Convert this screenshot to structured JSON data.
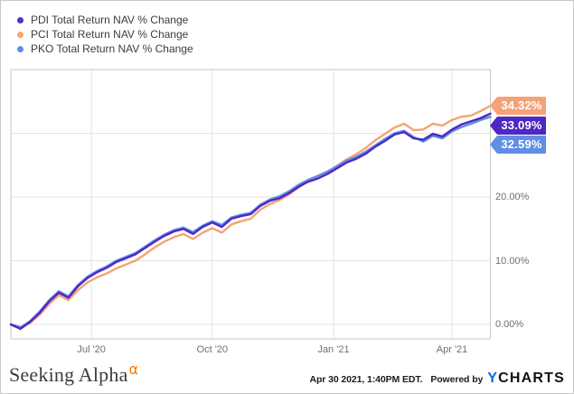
{
  "legend": {
    "items": [
      {
        "label": "PDI Total Return NAV % Change",
        "color": "#5530c8"
      },
      {
        "label": "PCI Total Return NAV % Change",
        "color": "#f8a571"
      },
      {
        "label": "PKO Total Return NAV % Change",
        "color": "#5f8ee2"
      }
    ]
  },
  "chart_data": {
    "type": "line",
    "title": "",
    "x_range_dates": [
      "Apr '20",
      "Apr 30 2021"
    ],
    "x_axis": {
      "ticks": [
        {
          "label": "Jul '20",
          "t": 0.168
        },
        {
          "label": "Oct '20",
          "t": 0.42
        },
        {
          "label": "Jan '21",
          "t": 0.673
        },
        {
          "label": "Apr '21",
          "t": 0.92
        }
      ]
    },
    "y_axis": {
      "min": -2.3,
      "max": 40,
      "gridline_values": [
        0,
        10,
        20,
        30
      ],
      "ticks": [
        {
          "label": "20.00%",
          "value": 20
        },
        {
          "label": "10.00%",
          "value": 10
        },
        {
          "label": "0.00%",
          "value": 0
        }
      ]
    },
    "x": [
      0,
      0.02,
      0.04,
      0.06,
      0.08,
      0.1,
      0.12,
      0.14,
      0.16,
      0.18,
      0.2,
      0.22,
      0.24,
      0.26,
      0.28,
      0.3,
      0.32,
      0.34,
      0.36,
      0.38,
      0.4,
      0.42,
      0.44,
      0.46,
      0.48,
      0.5,
      0.52,
      0.54,
      0.56,
      0.58,
      0.6,
      0.62,
      0.64,
      0.66,
      0.68,
      0.7,
      0.72,
      0.74,
      0.76,
      0.78,
      0.8,
      0.82,
      0.84,
      0.86,
      0.88,
      0.9,
      0.92,
      0.94,
      0.96,
      0.98,
      1.0
    ],
    "series": [
      {
        "name": "PCI Total Return NAV % Change",
        "color": "#f5a376",
        "end_label": "34.32%",
        "end_value": 34.32,
        "values": [
          0,
          -0.4,
          0.2,
          1.5,
          3.2,
          4.6,
          3.8,
          5.4,
          6.6,
          7.4,
          8.0,
          8.8,
          9.4,
          10.0,
          11.0,
          12.1,
          13.0,
          13.7,
          14.2,
          13.4,
          14.4,
          15.1,
          14.4,
          15.7,
          16.2,
          16.6,
          18.0,
          18.9,
          19.5,
          20.4,
          21.5,
          22.5,
          23.1,
          23.9,
          24.9,
          25.9,
          26.7,
          27.7,
          28.9,
          29.9,
          30.9,
          31.5,
          30.5,
          30.6,
          31.5,
          31.2,
          32.1,
          32.6,
          32.8,
          33.5,
          34.32
        ]
      },
      {
        "name": "PKO Total Return NAV % Change",
        "color": "#5f8ee2",
        "end_label": "32.59%",
        "end_value": 32.59,
        "values": [
          0,
          -0.5,
          0.5,
          2.0,
          3.8,
          5.2,
          4.4,
          6.2,
          7.5,
          8.4,
          9.1,
          10.0,
          10.6,
          11.2,
          12.2,
          13.2,
          14.1,
          14.8,
          15.2,
          14.5,
          15.5,
          16.2,
          15.6,
          16.8,
          17.2,
          17.5,
          18.8,
          19.6,
          20.1,
          20.9,
          21.9,
          22.7,
          23.3,
          24.0,
          24.8,
          25.7,
          26.3,
          27.1,
          28.1,
          29.1,
          30.0,
          30.4,
          29.4,
          28.7,
          29.6,
          29.2,
          30.3,
          31.0,
          31.5,
          32.1,
          32.59
        ]
      },
      {
        "name": "PDI Total Return NAV % Change",
        "color": "#4e28c4",
        "end_label": "33.09%",
        "end_value": 33.09,
        "values": [
          0,
          -0.7,
          0.4,
          1.8,
          3.6,
          5.0,
          4.2,
          6.0,
          7.3,
          8.2,
          8.9,
          9.8,
          10.4,
          11.0,
          12.0,
          13.0,
          13.9,
          14.6,
          15.0,
          14.2,
          15.3,
          16.0,
          15.3,
          16.6,
          17.0,
          17.3,
          18.6,
          19.4,
          19.8,
          20.6,
          21.6,
          22.4,
          22.9,
          23.6,
          24.5,
          25.4,
          26.0,
          26.8,
          27.9,
          28.8,
          29.8,
          30.2,
          29.2,
          29.0,
          29.9,
          29.5,
          30.6,
          31.4,
          31.9,
          32.4,
          33.09
        ]
      }
    ]
  },
  "footer": {
    "brand": "Seeking Alpha",
    "brand_alpha": "α",
    "timestamp": "Apr 30 2021, 1:40PM EDT.",
    "powered_by": "Powered by",
    "ycharts_y": "Y",
    "ycharts_rest": "CHARTS"
  }
}
